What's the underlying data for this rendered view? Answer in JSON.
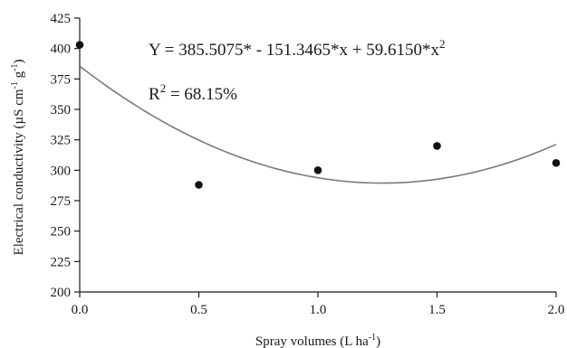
{
  "chart_data": {
    "type": "scatter",
    "xlabel": "Spray volumes (L ha",
    "xlabel_sup": "-1",
    "xlabel_tail": ")",
    "ylabel": "Electrical conductivity (µS cm",
    "ylabel_sup1": "-1",
    "ylabel_mid": " g",
    "ylabel_sup2": "-1",
    "ylabel_tail": ")",
    "xlim": [
      0.0,
      2.0
    ],
    "ylim": [
      200,
      425
    ],
    "x_ticks": [
      0.0,
      0.5,
      1.0,
      1.5,
      2.0
    ],
    "x_tick_labels": [
      "0.0",
      "0.5",
      "1.0",
      "1.5",
      "2.0"
    ],
    "y_ticks": [
      200,
      225,
      250,
      275,
      300,
      325,
      350,
      375,
      400,
      425
    ],
    "y_tick_labels": [
      "200",
      "225",
      "250",
      "275",
      "300",
      "325",
      "350",
      "375",
      "400",
      "425"
    ],
    "series": [
      {
        "type": "scatter",
        "x": [
          0.0,
          0.5,
          1.0,
          1.5,
          2.0
        ],
        "y": [
          403,
          288,
          300,
          320,
          306
        ]
      }
    ],
    "fit": {
      "type": "quadratic",
      "coefficients": [
        385.5075,
        -151.3465,
        59.615
      ],
      "x_range": [
        0.0,
        2.0
      ]
    },
    "annotation": {
      "equation_main": "Y = 385.5075* - 151.3465*x + 59.6150*x",
      "equation_exp": "2",
      "r2_main": "R",
      "r2_exp": "2",
      "r2_tail": " = 68.15%"
    },
    "grid": false,
    "legend": "none"
  }
}
